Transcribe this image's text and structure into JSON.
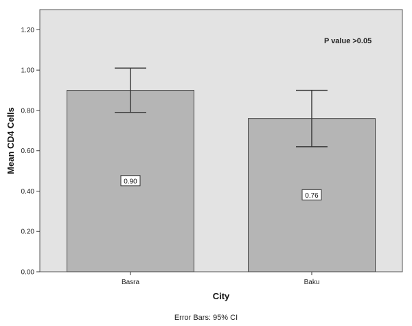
{
  "chart_data": {
    "type": "bar",
    "categories": [
      "Basra",
      "Baku"
    ],
    "values": [
      0.9,
      0.76
    ],
    "value_labels": [
      "0.90",
      "0.76"
    ],
    "error_bars": {
      "lower": [
        0.79,
        0.62
      ],
      "upper": [
        1.01,
        0.9
      ]
    },
    "xlabel": "City",
    "ylabel": "Mean CD4 Cells",
    "ylim": [
      0,
      1.3
    ],
    "yticks": [
      "0.00",
      "0.20",
      "0.40",
      "0.60",
      "0.80",
      "1.00",
      "1.20"
    ],
    "annotation": "P value >0.05",
    "footnote": "Error Bars: 95% CI",
    "grid": false,
    "colors": {
      "plot_bg": "#e3e3e3",
      "bar_fill": "#b5b5b5",
      "bar_stroke": "#444444",
      "error_bar": "#333333"
    }
  }
}
